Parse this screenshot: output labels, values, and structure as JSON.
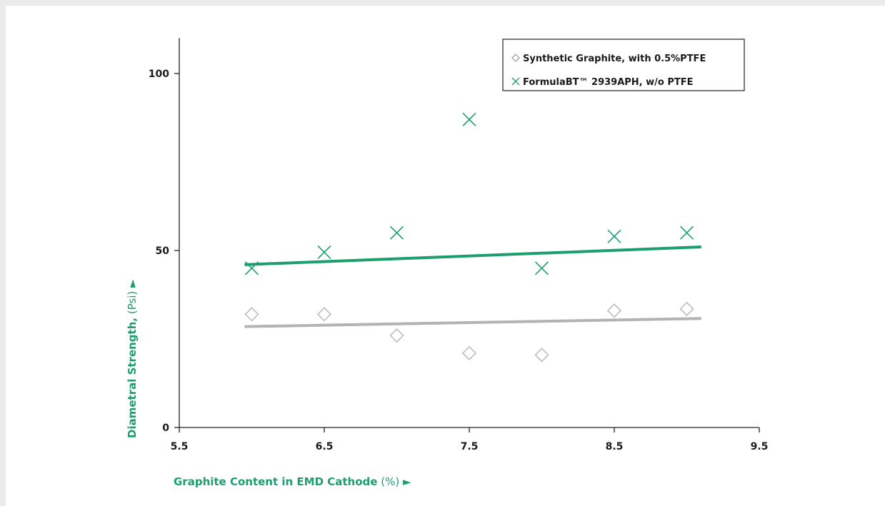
{
  "chart_data": {
    "type": "scatter",
    "title": "",
    "xlabel": "Graphite Content in EMD Cathode",
    "xlabel_unit": "(%)",
    "ylabel": "Diametral Strength,",
    "ylabel_unit": "(Psi)",
    "xlim": [
      5.5,
      9.5
    ],
    "ylim": [
      0,
      110
    ],
    "x_ticks": [
      "5.5",
      "6.5",
      "7.5",
      "8.5",
      "9.5"
    ],
    "y_ticks": [
      "0",
      "50",
      "100"
    ],
    "legend_position": "top-right",
    "series": [
      {
        "name": "Synthetic Graphite, with 0.5%PTFE",
        "marker": "diamond",
        "color": "#bdbdbd",
        "x": [
          6.0,
          6.5,
          7.0,
          7.5,
          8.0,
          8.5,
          9.0
        ],
        "y": [
          32,
          32,
          26,
          21,
          20.5,
          33,
          33.5
        ],
        "trendline": {
          "x": [
            5.95,
            9.1
          ],
          "y": [
            28.5,
            30.8
          ],
          "color": "#b3b3b3"
        }
      },
      {
        "name": "FormulaBT™ 2939APH, w/o PTFE",
        "marker": "x",
        "color": "#1d9e6e",
        "x": [
          6.0,
          6.5,
          7.0,
          7.5,
          8.0,
          8.5,
          9.0
        ],
        "y": [
          45,
          49.5,
          55,
          87,
          45,
          54,
          55
        ],
        "trendline": {
          "x": [
            5.95,
            9.1
          ],
          "y": [
            46,
            51
          ],
          "color": "#1d9e6e"
        }
      }
    ]
  }
}
